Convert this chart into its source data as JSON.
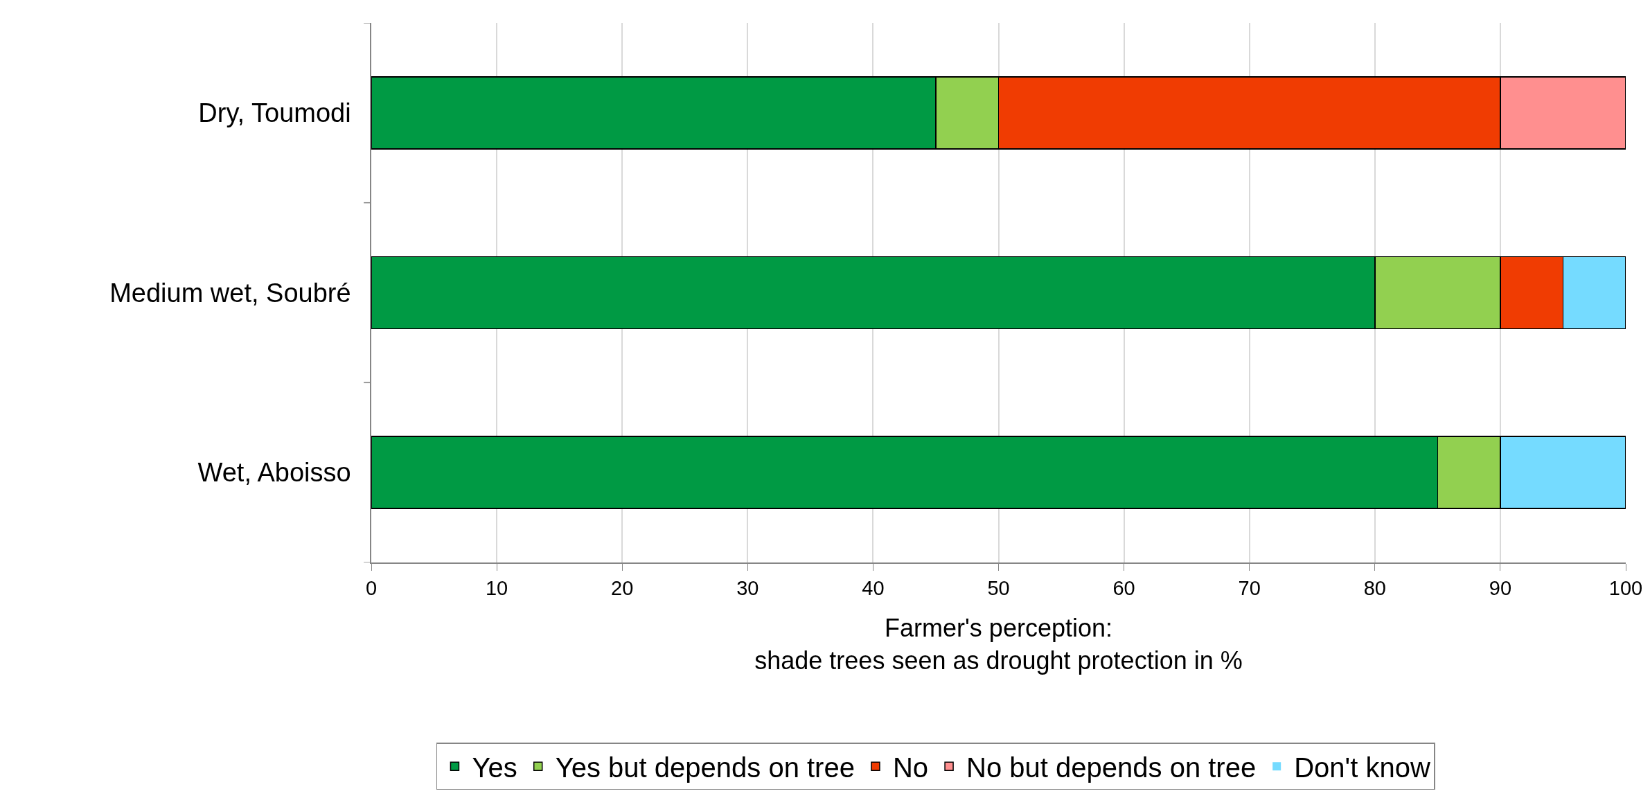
{
  "chart_data": {
    "type": "bar",
    "orientation": "horizontal",
    "stacked": true,
    "categories": [
      "Dry, Toumodi",
      "Medium wet, Soubré",
      "Wet, Aboisso"
    ],
    "series": [
      {
        "name": "Yes",
        "color": "#009a44",
        "values": [
          45,
          80,
          85
        ]
      },
      {
        "name": "Yes but depends on tree",
        "color": "#92d050",
        "values": [
          5,
          10,
          5
        ]
      },
      {
        "name": "No",
        "color": "#f03c02",
        "values": [
          40,
          5,
          0
        ]
      },
      {
        "name": "No but depends on tree",
        "color": "#ff8f8f",
        "values": [
          10,
          0,
          0
        ]
      },
      {
        "name": "Don't know",
        "color": "#75dbff",
        "values": [
          0,
          5,
          10
        ]
      }
    ],
    "xlabel": "Farmer's perception:\nshade trees seen as drought protection in %",
    "xlim": [
      0,
      100
    ],
    "xticks": [
      0,
      10,
      20,
      30,
      40,
      50,
      60,
      70,
      80,
      90,
      100
    ],
    "grid": "x",
    "legend": "bottom"
  }
}
